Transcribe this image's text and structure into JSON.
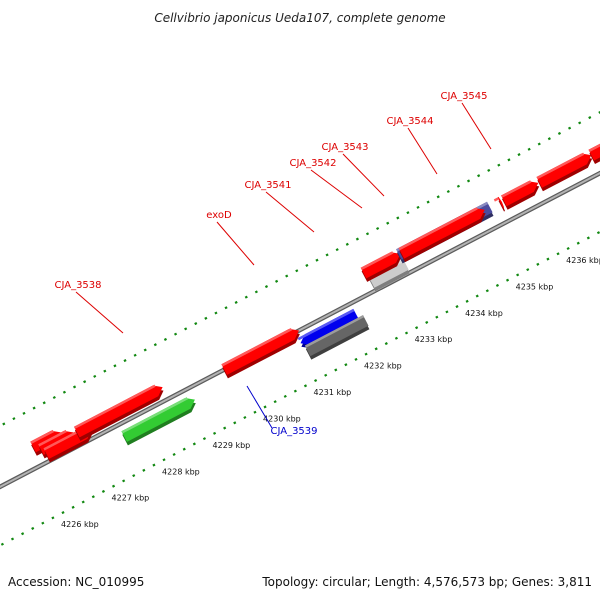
{
  "title": "Cellvibrio japonicus Ueda107, complete genome",
  "footer": {
    "accession": "Accession: NC_010995",
    "summary": "Topology: circular; Length: 4,576,573 bp; Genes: 3,811"
  },
  "kbp_ticks": [
    "4226 kbp",
    "4227 kbp",
    "4228 kbp",
    "4229 kbp",
    "4230 kbp",
    "4231 kbp",
    "4232 kbp",
    "4233 kbp",
    "4234 kbp",
    "4235 kbp",
    "4236 kbp"
  ],
  "gene_labels": [
    {
      "name": "CJA_3538",
      "strand": "forward"
    },
    {
      "name": "exoD",
      "strand": "forward"
    },
    {
      "name": "CJA_3541",
      "strand": "forward"
    },
    {
      "name": "CJA_3542",
      "strand": "forward"
    },
    {
      "name": "CJA_3543",
      "strand": "forward"
    },
    {
      "name": "CJA_3544",
      "strand": "forward"
    },
    {
      "name": "CJA_3545",
      "strand": "forward"
    },
    {
      "name": "CJA_3539",
      "strand": "reverse"
    }
  ],
  "colors": {
    "forward_gene": "#ff0000",
    "reverse_gene": "#0000ee",
    "rna_gene": "#33cc33",
    "highlight_gene": "#4b4b9e",
    "pseudo_gene": "#666666",
    "other_gene": "#cccccc",
    "forward_label": "#dd0000",
    "reverse_label": "#0000cc",
    "tick": "#118811",
    "backbone": "#888888"
  }
}
